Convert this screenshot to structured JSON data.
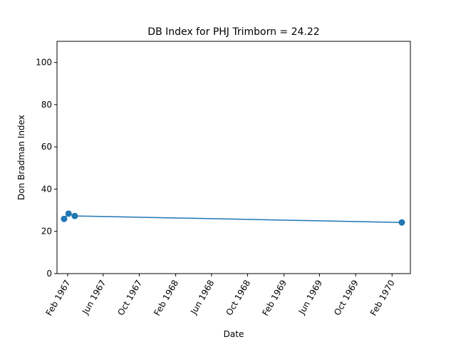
{
  "chart_data": {
    "type": "line",
    "title": "DB Index for PHJ Trimborn = 24.22",
    "xlabel": "Date",
    "ylabel": "Don Bradman Index",
    "ylim": [
      0,
      110
    ],
    "xlim": [
      "1966-12-27",
      "1970-04-04"
    ],
    "yticks": [
      0,
      20,
      40,
      60,
      80,
      100
    ],
    "xticks": [
      {
        "date": "1967-02-01",
        "label": "Feb 1967"
      },
      {
        "date": "1967-06-01",
        "label": "Jun 1967"
      },
      {
        "date": "1967-10-01",
        "label": "Oct 1967"
      },
      {
        "date": "1968-02-01",
        "label": "Feb 1968"
      },
      {
        "date": "1968-06-01",
        "label": "Jun 1968"
      },
      {
        "date": "1968-10-01",
        "label": "Oct 1968"
      },
      {
        "date": "1969-02-01",
        "label": "Feb 1969"
      },
      {
        "date": "1969-06-01",
        "label": "Jun 1969"
      },
      {
        "date": "1969-10-01",
        "label": "Oct 1969"
      },
      {
        "date": "1970-02-01",
        "label": "Feb 1970"
      }
    ],
    "series": [
      {
        "color": "#1f77b4",
        "points": [
          {
            "x": "1967-01-20",
            "y": 25.9
          },
          {
            "x": "1967-02-04",
            "y": 28.4
          },
          {
            "x": "1967-02-25",
            "y": 27.3
          },
          {
            "x": "1970-03-06",
            "y": 24.22
          }
        ]
      }
    ],
    "grid": false
  }
}
